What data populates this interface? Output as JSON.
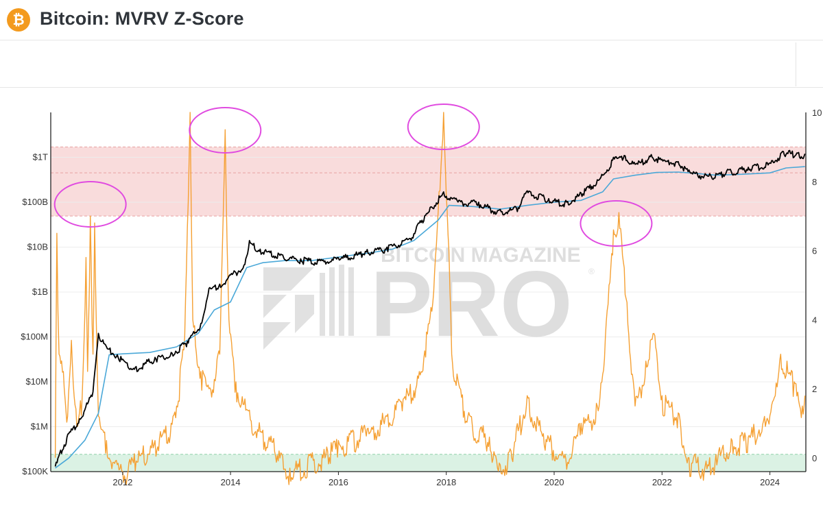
{
  "header": {
    "logo_glyph": "₿",
    "logo_icon": "bitcoin-icon",
    "title": "Bitcoin: MVRV Z-Score"
  },
  "watermark": {
    "top_text": "BITCOIN MAGAZINE",
    "main_text": "PRO",
    "registered": "®"
  },
  "colors": {
    "price": "#000000",
    "realized": "#4aa8d8",
    "zscore": "#f5a033",
    "top_band": "#f9dcdc",
    "bottom_band": "#dbf2e4",
    "highlight_circle": "#e04be0"
  },
  "chart_data": {
    "type": "line",
    "title": "Bitcoin: MVRV Z-Score",
    "x_ticks": [
      "2012",
      "2014",
      "2016",
      "2018",
      "2020",
      "2022",
      "2024"
    ],
    "xlim": [
      "2010-09",
      "2024-09"
    ],
    "y_left": {
      "scale": "log",
      "ticks": [
        "$100K",
        "$1M",
        "$10M",
        "$100M",
        "$1B",
        "$10B",
        "$100B",
        "$1T"
      ],
      "ylim": [
        100000,
        10000000000000
      ]
    },
    "y_right": {
      "ticks": [
        "0",
        "2",
        "4",
        "6",
        "8",
        "10"
      ],
      "ylim": [
        -0.4,
        10
      ]
    },
    "bands": [
      {
        "zone": "top",
        "z_range": [
          7.0,
          9.0
        ],
        "dashes": [
          7.0,
          8.25,
          9.0
        ]
      },
      {
        "zone": "bottom",
        "z_range": [
          -0.4,
          0.1
        ],
        "dashes": [
          -0.4,
          0.1
        ]
      }
    ],
    "highlight_circles": [
      2011.4,
      2013.9,
      2017.95,
      2021.15
    ],
    "series": [
      {
        "key": "price",
        "points": [
          [
            2010.75,
            130000
          ],
          [
            2010.85,
            300000
          ],
          [
            2011.0,
            700000
          ],
          [
            2011.2,
            1500000
          ],
          [
            2011.45,
            6000000
          ],
          [
            2011.55,
            120000000
          ],
          [
            2011.7,
            60000000
          ],
          [
            2011.9,
            40000000
          ],
          [
            2012.2,
            20000000
          ],
          [
            2012.6,
            35000000
          ],
          [
            2012.9,
            45000000
          ],
          [
            2013.2,
            80000000
          ],
          [
            2013.45,
            200000000
          ],
          [
            2013.6,
            1200000000
          ],
          [
            2013.8,
            1500000000
          ],
          [
            2014.0,
            2400000000
          ],
          [
            2014.25,
            4000000000
          ],
          [
            2014.35,
            14000000000
          ],
          [
            2014.55,
            9000000000
          ],
          [
            2014.9,
            7000000000
          ],
          [
            2015.3,
            5500000000
          ],
          [
            2015.7,
            5000000000
          ],
          [
            2016.0,
            5800000000
          ],
          [
            2016.5,
            8000000000
          ],
          [
            2016.9,
            10000000000
          ],
          [
            2017.3,
            15000000000
          ],
          [
            2017.6,
            50000000000
          ],
          [
            2017.95,
            170000000000
          ],
          [
            2018.2,
            110000000000
          ],
          [
            2018.6,
            100000000000
          ],
          [
            2018.95,
            65000000000
          ],
          [
            2019.3,
            75000000000
          ],
          [
            2019.5,
            180000000000
          ],
          [
            2019.9,
            120000000000
          ],
          [
            2020.2,
            100000000000
          ],
          [
            2020.5,
            160000000000
          ],
          [
            2020.9,
            400000000000
          ],
          [
            2021.1,
            1000000000000
          ],
          [
            2021.3,
            1100000000000
          ],
          [
            2021.5,
            700000000000
          ],
          [
            2021.8,
            1150000000000
          ],
          [
            2022.0,
            900000000000
          ],
          [
            2022.3,
            800000000000
          ],
          [
            2022.55,
            450000000000
          ],
          [
            2022.9,
            400000000000
          ],
          [
            2023.2,
            500000000000
          ],
          [
            2023.6,
            600000000000
          ],
          [
            2024.0,
            750000000000
          ],
          [
            2024.25,
            1350000000000
          ],
          [
            2024.5,
            1250000000000
          ],
          [
            2024.65,
            1200000000000
          ]
        ]
      },
      {
        "key": "realized",
        "points": [
          [
            2010.75,
            120000
          ],
          [
            2011.0,
            200000
          ],
          [
            2011.3,
            500000
          ],
          [
            2011.55,
            2000000
          ],
          [
            2011.75,
            40000000
          ],
          [
            2012.0,
            42000000
          ],
          [
            2012.5,
            45000000
          ],
          [
            2013.0,
            60000000
          ],
          [
            2013.4,
            120000000
          ],
          [
            2013.7,
            400000000
          ],
          [
            2014.0,
            600000000
          ],
          [
            2014.3,
            3500000000
          ],
          [
            2014.6,
            4500000000
          ],
          [
            2015.0,
            5000000000
          ],
          [
            2015.5,
            5000000000
          ],
          [
            2016.0,
            6000000000
          ],
          [
            2016.6,
            7500000000
          ],
          [
            2017.0,
            9000000000
          ],
          [
            2017.4,
            14000000000
          ],
          [
            2017.85,
            40000000000
          ],
          [
            2018.05,
            85000000000
          ],
          [
            2018.5,
            80000000000
          ],
          [
            2019.0,
            70000000000
          ],
          [
            2019.5,
            85000000000
          ],
          [
            2020.0,
            100000000000
          ],
          [
            2020.5,
            110000000000
          ],
          [
            2020.9,
            170000000000
          ],
          [
            2021.1,
            330000000000
          ],
          [
            2021.5,
            400000000000
          ],
          [
            2021.9,
            460000000000
          ],
          [
            2022.3,
            470000000000
          ],
          [
            2022.7,
            430000000000
          ],
          [
            2023.0,
            400000000000
          ],
          [
            2023.5,
            420000000000
          ],
          [
            2024.0,
            450000000000
          ],
          [
            2024.3,
            580000000000
          ],
          [
            2024.65,
            620000000000
          ]
        ]
      },
      {
        "key": "zscore",
        "points": [
          [
            2010.75,
            0
          ],
          [
            2010.78,
            6.5
          ],
          [
            2010.82,
            3.0
          ],
          [
            2010.9,
            2.5
          ],
          [
            2010.98,
            1.2
          ],
          [
            2011.05,
            3.4
          ],
          [
            2011.15,
            0.9
          ],
          [
            2011.25,
            1.8
          ],
          [
            2011.32,
            5.8
          ],
          [
            2011.35,
            2.5
          ],
          [
            2011.4,
            7.0
          ],
          [
            2011.45,
            3.0
          ],
          [
            2011.48,
            6.8
          ],
          [
            2011.55,
            1.2
          ],
          [
            2011.7,
            0.5
          ],
          [
            2011.9,
            -0.2
          ],
          [
            2012.0,
            -0.4
          ],
          [
            2012.3,
            0.2
          ],
          [
            2012.6,
            0.5
          ],
          [
            2012.9,
            1.0
          ],
          [
            2013.0,
            1.5
          ],
          [
            2013.15,
            3.5
          ],
          [
            2013.25,
            10.0
          ],
          [
            2013.3,
            4.0
          ],
          [
            2013.45,
            2.5
          ],
          [
            2013.6,
            2.0
          ],
          [
            2013.8,
            3.0
          ],
          [
            2013.9,
            9.5
          ],
          [
            2013.97,
            4.0
          ],
          [
            2014.1,
            2.2
          ],
          [
            2014.3,
            1.4
          ],
          [
            2014.6,
            0.8
          ],
          [
            2014.9,
            0.2
          ],
          [
            2015.1,
            -0.3
          ],
          [
            2015.5,
            0
          ],
          [
            2015.8,
            0.2
          ],
          [
            2016.0,
            0.5
          ],
          [
            2016.5,
            0.8
          ],
          [
            2016.9,
            1.2
          ],
          [
            2017.2,
            1.7
          ],
          [
            2017.5,
            2.5
          ],
          [
            2017.75,
            4.5
          ],
          [
            2017.95,
            10.0
          ],
          [
            2018.05,
            6.0
          ],
          [
            2018.1,
            3.0
          ],
          [
            2018.4,
            1.2
          ],
          [
            2018.8,
            0.6
          ],
          [
            2018.95,
            -0.3
          ],
          [
            2019.2,
            0.2
          ],
          [
            2019.5,
            1.8
          ],
          [
            2019.8,
            0.7
          ],
          [
            2020.2,
            0.1
          ],
          [
            2020.5,
            1.0
          ],
          [
            2020.8,
            1.5
          ],
          [
            2020.95,
            3.5
          ],
          [
            2021.1,
            6.6
          ],
          [
            2021.2,
            7.1
          ],
          [
            2021.35,
            4.5
          ],
          [
            2021.5,
            1.5
          ],
          [
            2021.7,
            2.8
          ],
          [
            2021.85,
            3.6
          ],
          [
            2022.0,
            1.8
          ],
          [
            2022.3,
            1.3
          ],
          [
            2022.5,
            0
          ],
          [
            2022.85,
            -0.2
          ],
          [
            2023.0,
            0.1
          ],
          [
            2023.3,
            0.5
          ],
          [
            2023.6,
            0.6
          ],
          [
            2023.9,
            1.2
          ],
          [
            2024.1,
            1.8
          ],
          [
            2024.2,
            3.0
          ],
          [
            2024.45,
            2.2
          ],
          [
            2024.6,
            1.5
          ],
          [
            2024.65,
            1.8
          ]
        ]
      }
    ]
  }
}
